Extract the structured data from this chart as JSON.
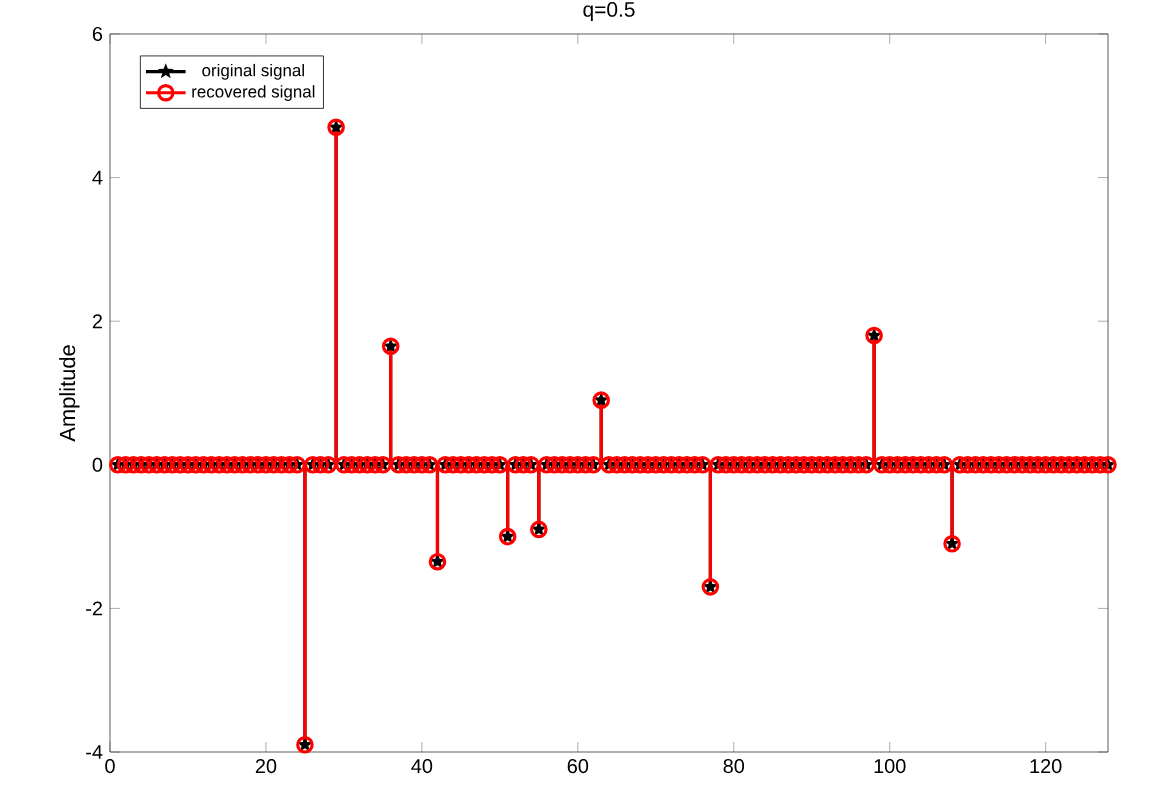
{
  "chart_data": {
    "type": "lollipop",
    "title": "q=0.5",
    "ylabel": "Amplitude",
    "x": [
      1,
      2,
      3,
      4,
      5,
      6,
      7,
      8,
      9,
      10,
      11,
      12,
      13,
      14,
      15,
      16,
      17,
      18,
      19,
      20,
      21,
      22,
      23,
      24,
      25,
      26,
      27,
      28,
      29,
      30,
      31,
      32,
      33,
      34,
      35,
      36,
      37,
      38,
      39,
      40,
      41,
      42,
      43,
      44,
      45,
      46,
      47,
      48,
      49,
      50,
      51,
      52,
      53,
      54,
      55,
      56,
      57,
      58,
      59,
      60,
      61,
      62,
      63,
      64,
      65,
      66,
      67,
      68,
      69,
      70,
      71,
      72,
      73,
      74,
      75,
      76,
      77,
      78,
      79,
      80,
      81,
      82,
      83,
      84,
      85,
      86,
      87,
      88,
      89,
      90,
      91,
      92,
      93,
      94,
      95,
      96,
      97,
      98,
      99,
      100,
      101,
      102,
      103,
      104,
      105,
      106,
      107,
      108,
      109,
      110,
      111,
      112,
      113,
      114,
      115,
      116,
      117,
      118,
      119,
      120,
      121,
      122,
      123,
      124,
      125,
      126,
      127,
      128
    ],
    "series": [
      {
        "name": "original signal",
        "color": "#000000",
        "marker": "star",
        "values": [
          0,
          0,
          0,
          0,
          0,
          0,
          0,
          0,
          0,
          0,
          0,
          0,
          0,
          0,
          0,
          0,
          0,
          0,
          0,
          0,
          0,
          0,
          0,
          0,
          -3.9,
          0,
          0,
          0,
          4.7,
          0,
          0,
          0,
          0,
          0,
          0,
          1.65,
          0,
          0,
          0,
          0,
          0,
          -1.35,
          0,
          0,
          0,
          0,
          0,
          0,
          0,
          0,
          -1.0,
          0,
          0,
          0,
          -0.9,
          0,
          0,
          0,
          0,
          0,
          0,
          0,
          0.9,
          0,
          0,
          0,
          0,
          0,
          0,
          0,
          0,
          0,
          0,
          0,
          0,
          0,
          -1.7,
          0,
          0,
          0,
          0,
          0,
          0,
          0,
          0,
          0,
          0,
          0,
          0,
          0,
          0,
          0,
          0,
          0,
          0,
          0,
          0,
          1.8,
          0,
          0,
          0,
          0,
          0,
          0,
          0,
          0,
          0,
          -1.1,
          0,
          0,
          0,
          0,
          0,
          0,
          0,
          0,
          0,
          0,
          0,
          0,
          0,
          0,
          0,
          0,
          0,
          0,
          0,
          0
        ]
      },
      {
        "name": "recovered signal",
        "color": "#ff0000",
        "marker": "circle",
        "values": [
          0,
          0,
          0,
          0,
          0,
          0,
          0,
          0,
          0,
          0,
          0,
          0,
          0,
          0,
          0,
          0,
          0,
          0,
          0,
          0,
          0,
          0,
          0,
          0,
          -3.9,
          0,
          0,
          0,
          4.7,
          0,
          0,
          0,
          0,
          0,
          0,
          1.65,
          0,
          0,
          0,
          0,
          0,
          -1.35,
          0,
          0,
          0,
          0,
          0,
          0,
          0,
          0,
          -1.0,
          0,
          0,
          0,
          -0.9,
          0,
          0,
          0,
          0,
          0,
          0,
          0,
          0.9,
          0,
          0,
          0,
          0,
          0,
          0,
          0,
          0,
          0,
          0,
          0,
          0,
          0,
          -1.7,
          0,
          0,
          0,
          0,
          0,
          0,
          0,
          0,
          0,
          0,
          0,
          0,
          0,
          0,
          0,
          0,
          0,
          0,
          0,
          0,
          1.8,
          0,
          0,
          0,
          0,
          0,
          0,
          0,
          0,
          0,
          -1.1,
          0,
          0,
          0,
          0,
          0,
          0,
          0,
          0,
          0,
          0,
          0,
          0,
          0,
          0,
          0,
          0,
          0,
          0,
          0,
          0
        ]
      }
    ],
    "xlim": [
      0,
      128
    ],
    "ylim": [
      -4,
      6
    ],
    "xticks": [
      0,
      20,
      40,
      60,
      80,
      100,
      120
    ],
    "yticks": [
      -4,
      -2,
      0,
      2,
      4,
      6
    ],
    "legend": "top left",
    "grid": false
  }
}
